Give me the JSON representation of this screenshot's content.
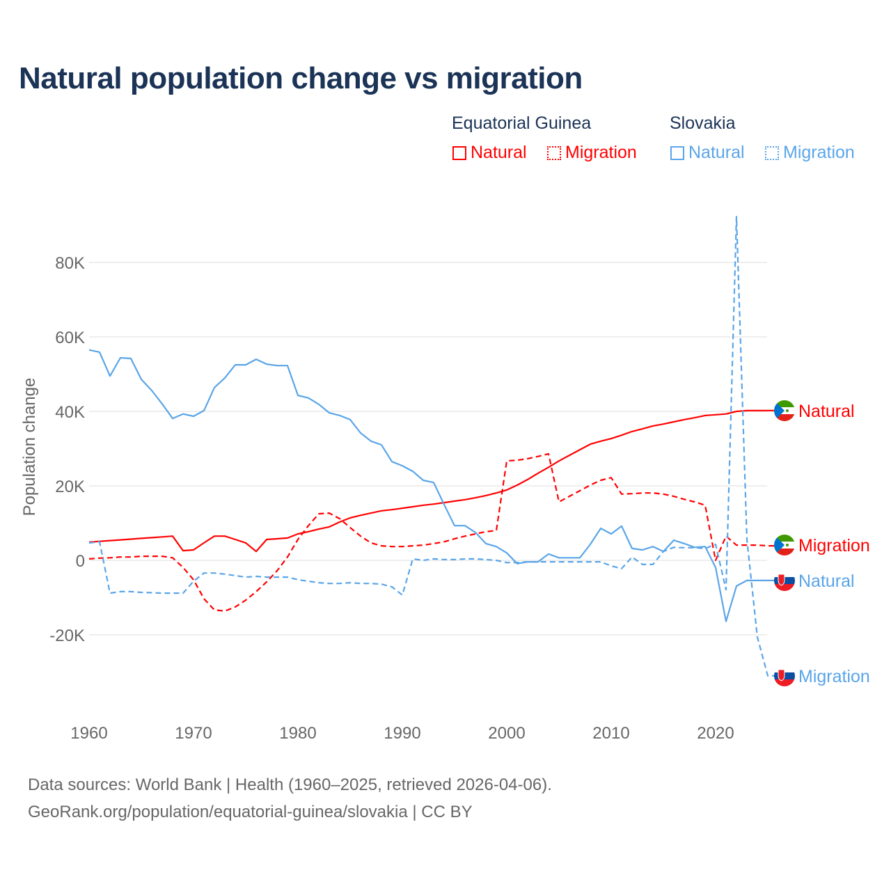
{
  "title": "Natural population change vs migration",
  "legend": {
    "groups": [
      {
        "name": "Equatorial Guinea",
        "color": "#ff0000",
        "items": [
          "Natural",
          "Migration"
        ]
      },
      {
        "name": "Slovakia",
        "color": "#5aa5e8",
        "items": [
          "Natural",
          "Migration"
        ]
      }
    ]
  },
  "footer": {
    "line1": "Data sources: World Bank | Health (1960–2025, retrieved 2026-04-06).",
    "line2": "GeoRank.org/population/equatorial-guinea/slovakia | CC BY"
  },
  "chart_data": {
    "type": "line",
    "title": "Natural population change vs migration",
    "xlabel": "",
    "ylabel": "Population change",
    "xlim": [
      1960,
      2025
    ],
    "ylim": [
      -35000,
      93000
    ],
    "x_ticks": [
      1960,
      1970,
      1980,
      1990,
      2000,
      2010,
      2020
    ],
    "y_ticks": [
      {
        "v": -20000,
        "label": "-20K"
      },
      {
        "v": 0,
        "label": "0"
      },
      {
        "v": 20000,
        "label": "20K"
      },
      {
        "v": 40000,
        "label": "40K"
      },
      {
        "v": 60000,
        "label": "60K"
      },
      {
        "v": 80000,
        "label": "80K"
      }
    ],
    "grid": true,
    "legend_position": "top-right",
    "x_start": 1960,
    "series": [
      {
        "name": "Equatorial Guinea Natural",
        "end_label": "Natural",
        "country": "gq",
        "color": "#ff0000",
        "dash": "solid",
        "values_k": [
          4.9,
          5.1,
          5.3,
          5.5,
          5.7,
          5.9,
          6.1,
          6.3,
          6.5,
          2.6,
          2.8,
          4.7,
          6.5,
          6.5,
          5.6,
          4.7,
          2.4,
          5.6,
          5.8,
          6.0,
          7.1,
          7.7,
          8.4,
          9.0,
          10.3,
          11.4,
          12.1,
          12.7,
          13.3,
          13.6,
          14.0,
          14.4,
          14.8,
          15.1,
          15.5,
          15.9,
          16.3,
          16.8,
          17.4,
          18.1,
          18.9,
          20.2,
          21.7,
          23.4,
          25.0,
          26.7,
          28.2,
          29.7,
          31.2,
          32.0,
          32.7,
          33.6,
          34.6,
          35.3,
          36.1,
          36.6,
          37.2,
          37.8,
          38.3,
          38.9,
          39.1,
          39.3,
          40.0,
          40.2,
          40.2,
          40.2
        ]
      },
      {
        "name": "Equatorial Guinea Migration",
        "end_label": "Migration",
        "country": "gq",
        "color": "#ff0000",
        "dash": "dashed",
        "values_k": [
          0.4,
          0.6,
          0.7,
          0.9,
          0.9,
          1.1,
          1.1,
          1.1,
          0.7,
          -1.9,
          -5.2,
          -10.3,
          -13.3,
          -13.6,
          -12.5,
          -10.7,
          -8.4,
          -5.8,
          -2.8,
          0.9,
          5.6,
          9.3,
          12.5,
          12.7,
          11.2,
          8.8,
          6.5,
          4.7,
          3.9,
          3.7,
          3.7,
          3.9,
          4.1,
          4.5,
          5.0,
          5.8,
          6.5,
          7.1,
          7.7,
          8.0,
          26.7,
          26.9,
          27.3,
          27.9,
          28.6,
          15.7,
          17.2,
          18.7,
          20.2,
          21.5,
          22.2,
          17.8,
          17.9,
          18.1,
          18.1,
          17.8,
          17.2,
          16.4,
          15.7,
          14.8,
          0.0,
          6.5,
          4.1,
          4.1,
          4.1,
          3.9
        ]
      },
      {
        "name": "Slovakia Natural",
        "end_label": "Natural",
        "country": "sk",
        "color": "#5aa5e8",
        "dash": "solid",
        "values_k": [
          56.5,
          55.9,
          49.5,
          54.4,
          54.2,
          48.6,
          45.6,
          42.0,
          38.1,
          39.3,
          38.7,
          40.2,
          46.4,
          49.0,
          52.5,
          52.5,
          54.0,
          52.7,
          52.3,
          52.3,
          44.3,
          43.6,
          41.9,
          39.6,
          38.9,
          37.8,
          34.2,
          32.0,
          31.0,
          26.5,
          25.4,
          23.9,
          21.5,
          20.9,
          15.0,
          9.3,
          9.3,
          7.5,
          4.5,
          3.7,
          2.0,
          -0.9,
          -0.4,
          -0.4,
          1.7,
          0.7,
          0.7,
          0.7,
          4.3,
          8.6,
          7.1,
          9.2,
          3.2,
          2.8,
          3.7,
          2.4,
          5.4,
          4.5,
          3.5,
          3.7,
          -1.9,
          -16.4,
          -6.9,
          -5.4,
          -5.4,
          -5.4
        ]
      },
      {
        "name": "Slovakia Migration",
        "end_label": "Migration",
        "country": "sk",
        "color": "#5aa5e8",
        "dash": "dashed",
        "values_k": [
          4.7,
          5.0,
          -8.8,
          -8.4,
          -8.4,
          -8.6,
          -8.7,
          -8.8,
          -8.8,
          -8.8,
          -5.6,
          -3.4,
          -3.4,
          -3.7,
          -4.1,
          -4.5,
          -4.3,
          -4.5,
          -4.5,
          -4.5,
          -5.2,
          -5.6,
          -6.0,
          -6.2,
          -6.2,
          -6.0,
          -6.2,
          -6.2,
          -6.4,
          -7.1,
          -9.3,
          0.4,
          0.0,
          0.4,
          0.2,
          0.2,
          0.4,
          0.4,
          0.2,
          0.0,
          -0.6,
          -0.6,
          -0.4,
          -0.4,
          -0.4,
          -0.4,
          -0.4,
          -0.4,
          -0.4,
          -0.4,
          -1.5,
          -2.2,
          0.9,
          -1.1,
          -1.1,
          2.4,
          3.5,
          3.4,
          3.4,
          3.2,
          4.3,
          -7.9,
          92.3,
          5.6,
          -20.6,
          -31.0
        ]
      }
    ]
  }
}
